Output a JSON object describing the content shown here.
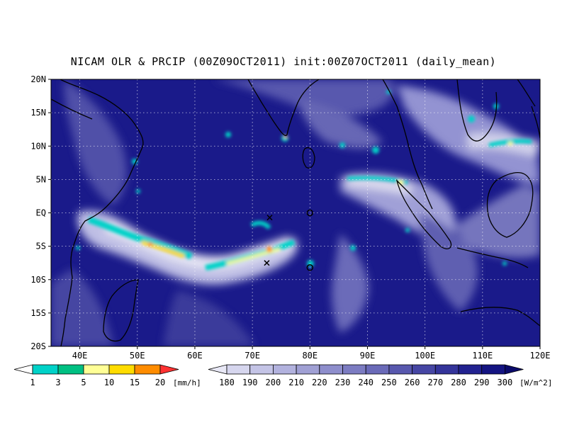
{
  "title": "NICAM OLR & PRCIP (00Z09OCT2011) init:00Z07OCT2011 (daily_mean)",
  "map": {
    "lon_range": [
      35,
      120
    ],
    "lat_range": [
      -20,
      20
    ],
    "lat_labels": [
      "20N",
      "15N",
      "10N",
      "5N",
      "EQ",
      "5S",
      "10S",
      "15S",
      "20S"
    ],
    "lon_labels": [
      "40E",
      "50E",
      "60E",
      "70E",
      "80E",
      "90E",
      "100E",
      "110E",
      "120E"
    ],
    "gridlines": true,
    "markers": [
      {
        "type": "x",
        "lon": 73,
        "lat": -0.7
      },
      {
        "type": "x",
        "lon": 72.5,
        "lat": -7.5
      },
      {
        "type": "circle",
        "lon": 80,
        "lat": 0
      },
      {
        "type": "circle",
        "lon": 80,
        "lat": -8.2
      }
    ]
  },
  "precip_legend": {
    "levels": [
      "1",
      "3",
      "5",
      "10",
      "15",
      "20"
    ],
    "unit": "[mm/h]",
    "colors": [
      "#00d2c8",
      "#00c082",
      "#ffff96",
      "#ffdc00",
      "#ff8c00",
      "#ff3232"
    ]
  },
  "olr_legend": {
    "levels": [
      "180",
      "190",
      "200",
      "210",
      "220",
      "230",
      "240",
      "250",
      "260",
      "270",
      "280",
      "290",
      "300"
    ],
    "unit": "[W/m^2]",
    "colors": [
      "#e8e8f6",
      "#d6d6ee",
      "#c4c4e6",
      "#b2b2de",
      "#a0a0d4",
      "#8e8ecc",
      "#7c7cc2",
      "#6a6ab8",
      "#5858ae",
      "#4646a4",
      "#34349a",
      "#222290",
      "#141482",
      "#0a0a6a"
    ]
  }
}
